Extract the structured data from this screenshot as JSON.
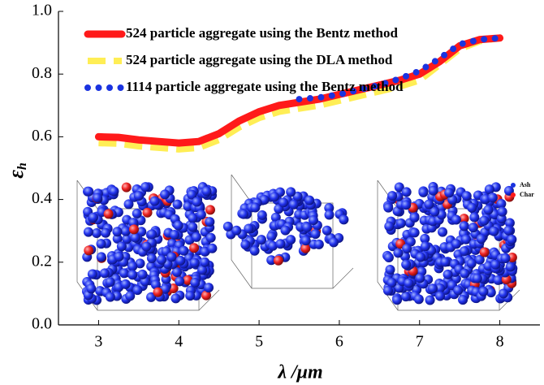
{
  "chart_data": {
    "type": "line",
    "x_label": "λ /μm",
    "y_label": "ε",
    "y_label_sub": "h",
    "x": [
      3,
      3.25,
      3.5,
      3.75,
      4,
      4.25,
      4.5,
      4.75,
      5,
      5.25,
      5.5,
      5.75,
      6,
      6.25,
      6.5,
      6.75,
      7,
      7.25,
      7.5,
      7.75,
      8
    ],
    "series": [
      {
        "name": "524 particle aggregate using the Bentz method",
        "color": "#ff1a1a",
        "style": "solid",
        "values": [
          0.6,
          0.598,
          0.59,
          0.585,
          0.58,
          0.585,
          0.61,
          0.65,
          0.68,
          0.7,
          0.71,
          0.72,
          0.735,
          0.75,
          0.765,
          0.78,
          0.8,
          0.84,
          0.89,
          0.91,
          0.915
        ]
      },
      {
        "name": "524 particle aggregate using the DLA method",
        "color": "#ffee55",
        "style": "dashed",
        "values": [
          0.58,
          0.578,
          0.57,
          0.565,
          0.56,
          0.565,
          0.59,
          0.63,
          0.66,
          0.68,
          0.69,
          0.7,
          0.715,
          0.73,
          0.745,
          0.76,
          0.78,
          0.83,
          0.88,
          0.905,
          0.915
        ]
      },
      {
        "name": "1114 particle aggregate using the Bentz method",
        "color": "#1a33e0",
        "style": "dotted",
        "values": [
          null,
          null,
          null,
          null,
          null,
          null,
          null,
          null,
          null,
          null,
          0.72,
          0.725,
          0.735,
          0.75,
          0.765,
          0.785,
          0.81,
          0.85,
          0.895,
          0.91,
          0.915
        ]
      }
    ],
    "xlim": [
      2.5,
      8.5
    ],
    "xticks": [
      3,
      4,
      5,
      6,
      7,
      8
    ],
    "ylim": [
      0,
      1
    ],
    "yticks": [
      {
        "value": 0,
        "label": "0.0"
      },
      {
        "value": 0.2,
        "label": "0.2"
      },
      {
        "value": 0.4,
        "label": "0.4"
      },
      {
        "value": 0.6,
        "label": "0.6"
      },
      {
        "value": 0.8,
        "label": "0.8"
      },
      {
        "value": 1,
        "label": "1.0"
      }
    ],
    "inset_legend": [
      {
        "name": "Ash",
        "color": "#1a33e0"
      },
      {
        "name": "Char",
        "color": "#ff1a1a"
      }
    ]
  }
}
